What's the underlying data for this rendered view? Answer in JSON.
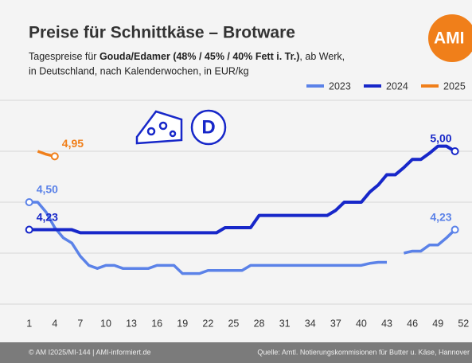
{
  "chart_data": {
    "type": "line",
    "title": "Preise für Schnittkäse – Brotware",
    "subtitle_parts": [
      "Tagespreise für ",
      "Gouda/Edamer (48% / 45% / 40% Fett i. Tr.)",
      ", ab Werk,"
    ],
    "subtitle_line2": "in Deutschland, nach Kalenderwochen, in EUR/kg",
    "logo": "AMI",
    "footer_left": "© AM I2025/MI-144 | AMI-informiert.de",
    "footer_right": "Quelle: Amtl. Notierungskommisionen für Butter u. Käse, Hannover",
    "x": [
      1,
      2,
      3,
      4,
      5,
      6,
      7,
      8,
      9,
      10,
      11,
      12,
      13,
      14,
      15,
      16,
      17,
      18,
      19,
      20,
      21,
      22,
      23,
      24,
      25,
      26,
      27,
      28,
      29,
      30,
      31,
      32,
      33,
      34,
      35,
      36,
      37,
      38,
      39,
      40,
      41,
      42,
      43,
      44,
      45,
      46,
      47,
      48,
      49,
      50,
      51
    ],
    "xlim": [
      0,
      53
    ],
    "xticks": [
      1,
      4,
      7,
      10,
      13,
      16,
      19,
      22,
      25,
      28,
      31,
      34,
      37,
      40,
      43,
      46,
      49,
      52
    ],
    "ylim": [
      3.5,
      5.5
    ],
    "yticks": [
      3.5,
      4,
      4.5,
      5,
      5.5
    ],
    "grid": true,
    "legend": "top-right",
    "series": [
      {
        "name": "2023",
        "color": "#5b82e8",
        "values": [
          4.5,
          4.5,
          4.4,
          4.25,
          4.15,
          4.1,
          3.97,
          3.88,
          3.85,
          3.88,
          3.88,
          3.85,
          3.85,
          3.85,
          3.85,
          3.88,
          3.88,
          3.88,
          3.8,
          3.8,
          3.8,
          3.83,
          3.83,
          3.83,
          3.83,
          3.83,
          3.88,
          3.88,
          3.88,
          3.88,
          3.88,
          3.88,
          3.88,
          3.88,
          3.88,
          3.88,
          3.88,
          3.88,
          3.88,
          3.88,
          3.9,
          3.91,
          3.91,
          null,
          4.0,
          4.02,
          4.02,
          4.08,
          4.08,
          4.15,
          4.23
        ],
        "value_labels": [
          "4,50",
          null,
          null,
          null,
          null,
          null,
          null,
          null,
          null,
          null,
          null,
          null,
          null,
          null,
          null,
          null,
          null,
          null,
          null,
          null,
          null,
          null,
          null,
          null,
          null,
          null,
          null,
          null,
          null,
          null,
          null,
          null,
          null,
          null,
          null,
          null,
          null,
          null,
          null,
          null,
          null,
          null,
          null,
          null,
          null,
          null,
          null,
          null,
          null,
          null,
          "4,23"
        ]
      },
      {
        "name": "2024",
        "color": "#1727c9",
        "values": [
          4.23,
          4.23,
          4.23,
          4.23,
          4.23,
          4.23,
          4.2,
          4.2,
          4.2,
          4.2,
          4.2,
          4.2,
          4.2,
          4.2,
          4.2,
          4.2,
          4.2,
          4.2,
          4.2,
          4.2,
          4.2,
          4.2,
          4.2,
          4.25,
          4.25,
          4.25,
          4.25,
          4.37,
          4.37,
          4.37,
          4.37,
          4.37,
          4.37,
          4.37,
          4.37,
          4.37,
          4.42,
          4.5,
          4.5,
          4.5,
          4.6,
          4.67,
          4.77,
          4.77,
          4.84,
          4.92,
          4.92,
          4.98,
          5.05,
          5.05,
          5.0
        ],
        "value_labels": [
          "4,23",
          null,
          null,
          null,
          null,
          null,
          null,
          null,
          null,
          null,
          null,
          null,
          null,
          null,
          null,
          null,
          null,
          null,
          null,
          null,
          null,
          null,
          null,
          null,
          null,
          null,
          null,
          null,
          null,
          null,
          null,
          null,
          null,
          null,
          null,
          null,
          null,
          null,
          null,
          null,
          null,
          null,
          null,
          null,
          null,
          null,
          null,
          null,
          null,
          null,
          "5,00"
        ]
      },
      {
        "name": "2025",
        "color": "#f07f1a",
        "values": [
          null,
          5.0,
          4.97,
          4.95,
          null,
          null,
          null,
          null,
          null,
          null,
          null,
          null,
          null,
          null,
          null,
          null,
          null,
          null,
          null,
          null,
          null,
          null,
          null,
          null,
          null,
          null,
          null,
          null,
          null,
          null,
          null,
          null,
          null,
          null,
          null,
          null,
          null,
          null,
          null,
          null,
          null,
          null,
          null,
          null,
          null,
          null,
          null,
          null,
          null,
          null,
          null
        ],
        "value_labels": [
          null,
          null,
          null,
          "4,95",
          null,
          null,
          null,
          null,
          null,
          null,
          null,
          null,
          null,
          null,
          null,
          null,
          null,
          null,
          null,
          null,
          null,
          null,
          null,
          null,
          null,
          null,
          null,
          null,
          null,
          null,
          null,
          null,
          null,
          null,
          null,
          null,
          null,
          null,
          null,
          null,
          null,
          null,
          null,
          null,
          null,
          null,
          null,
          null,
          null,
          null,
          null
        ]
      }
    ]
  }
}
